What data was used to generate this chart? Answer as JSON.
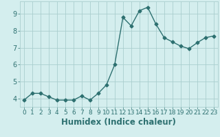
{
  "xlabel": "Humidex (Indice chaleur)",
  "x": [
    0,
    1,
    2,
    3,
    4,
    5,
    6,
    7,
    8,
    9,
    10,
    11,
    12,
    13,
    14,
    15,
    16,
    17,
    18,
    19,
    20,
    21,
    22,
    23
  ],
  "y": [
    3.9,
    4.3,
    4.3,
    4.1,
    3.9,
    3.9,
    3.9,
    4.15,
    3.9,
    4.3,
    4.8,
    6.0,
    8.8,
    8.3,
    9.2,
    9.4,
    8.4,
    7.6,
    7.35,
    7.1,
    6.95,
    7.3,
    7.6,
    7.7
  ],
  "line_color": "#2d7070",
  "marker": "D",
  "marker_size": 2.5,
  "line_width": 1.0,
  "ylim": [
    3.5,
    9.75
  ],
  "xlim": [
    -0.5,
    23.5
  ],
  "yticks": [
    4,
    5,
    6,
    7,
    8,
    9
  ],
  "xticks": [
    0,
    1,
    2,
    3,
    4,
    5,
    6,
    7,
    8,
    9,
    10,
    11,
    12,
    13,
    14,
    15,
    16,
    17,
    18,
    19,
    20,
    21,
    22,
    23
  ],
  "bg_color": "#d4eeee",
  "grid_color": "#aacece",
  "tick_fontsize": 6.5,
  "xlabel_fontsize": 8.5
}
